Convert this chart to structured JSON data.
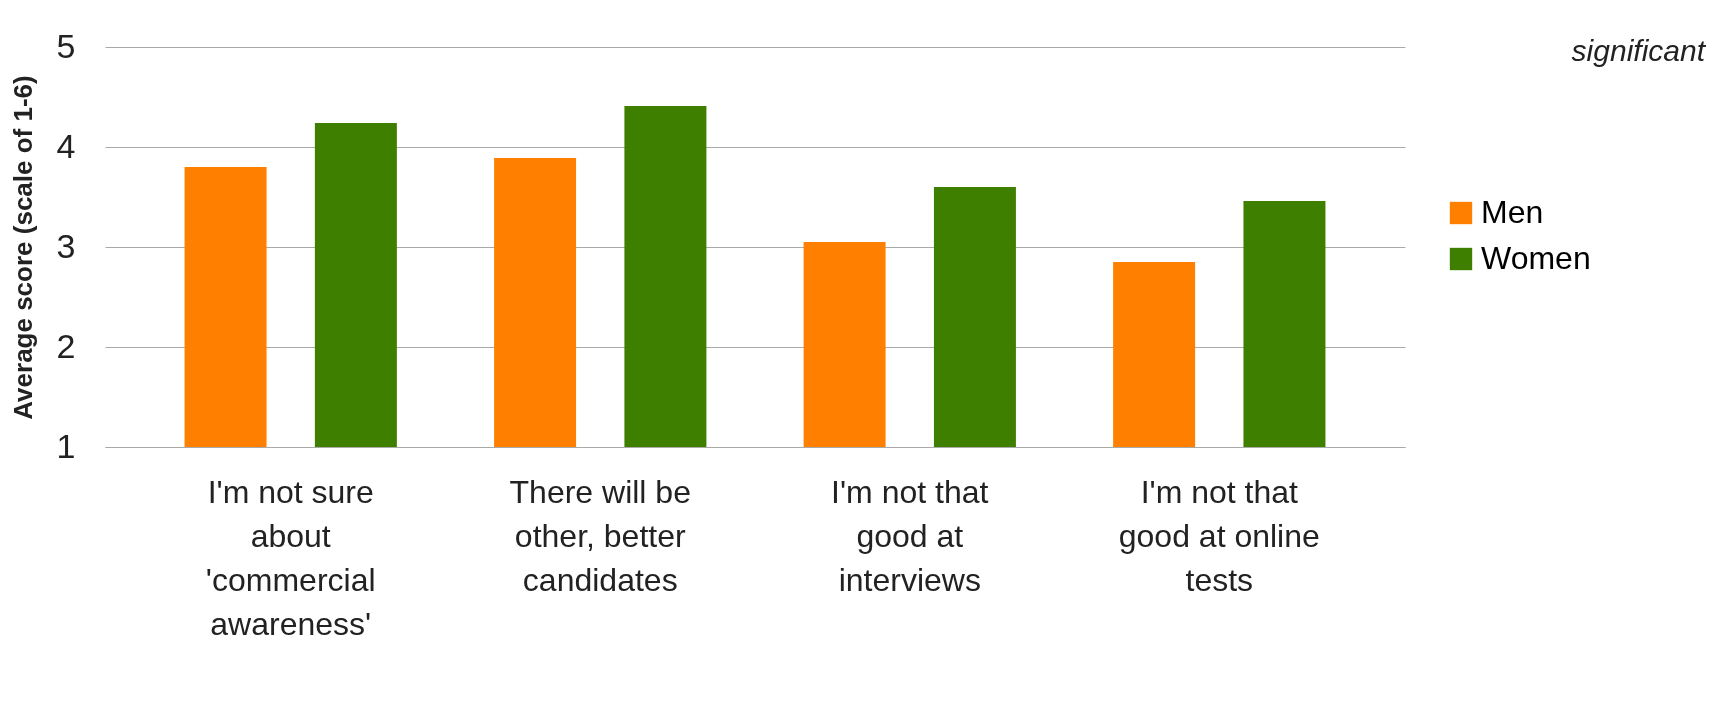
{
  "chart_data": {
    "type": "bar",
    "ylabel": "Average score (scale of 1-6)",
    "categories": [
      "I'm not sure about 'commercial awareness'",
      "There will be other, better candidates",
      "I'm not that good at interviews",
      "I'm not that good at online tests"
    ],
    "series": [
      {
        "name": "Men",
        "color": "#ff8000",
        "values": [
          3.8,
          3.89,
          3.05,
          2.85
        ]
      },
      {
        "name": "Women",
        "color": "#3f7f00",
        "values": [
          4.24,
          4.41,
          3.6,
          3.46
        ]
      }
    ],
    "ylim": [
      1,
      5
    ],
    "yticks": [
      1,
      2,
      3,
      4,
      5
    ],
    "grid": "y",
    "legend": "right",
    "annotations": [
      "significant"
    ]
  }
}
